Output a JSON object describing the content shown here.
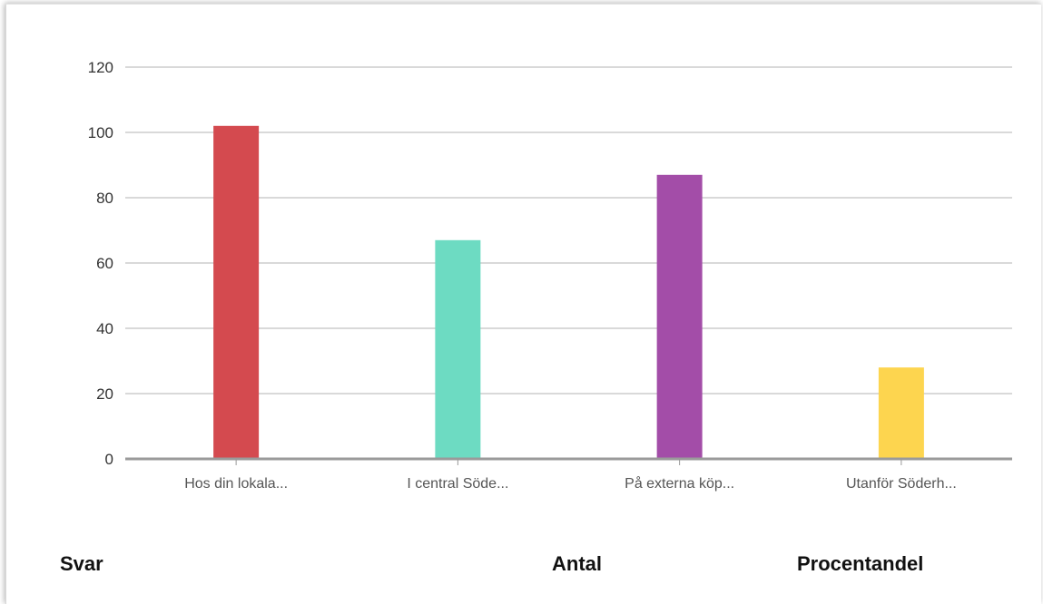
{
  "chart_data": {
    "type": "bar",
    "categories": [
      "Hos din lokala...",
      "I central Söde...",
      "På externa köp...",
      "Utanför Söderh..."
    ],
    "values": [
      102,
      67,
      87,
      28
    ],
    "colors": [
      "#d44a4f",
      "#6ddbc2",
      "#a34da8",
      "#fdd54f"
    ],
    "ylim": [
      0,
      120
    ],
    "yticks": [
      0,
      20,
      40,
      60,
      80,
      100,
      120
    ],
    "grid": true,
    "title": "",
    "xlabel": "",
    "ylabel": ""
  },
  "table": {
    "col_answer": "Svar",
    "col_count": "Antal",
    "col_percent": "Procentandel"
  }
}
